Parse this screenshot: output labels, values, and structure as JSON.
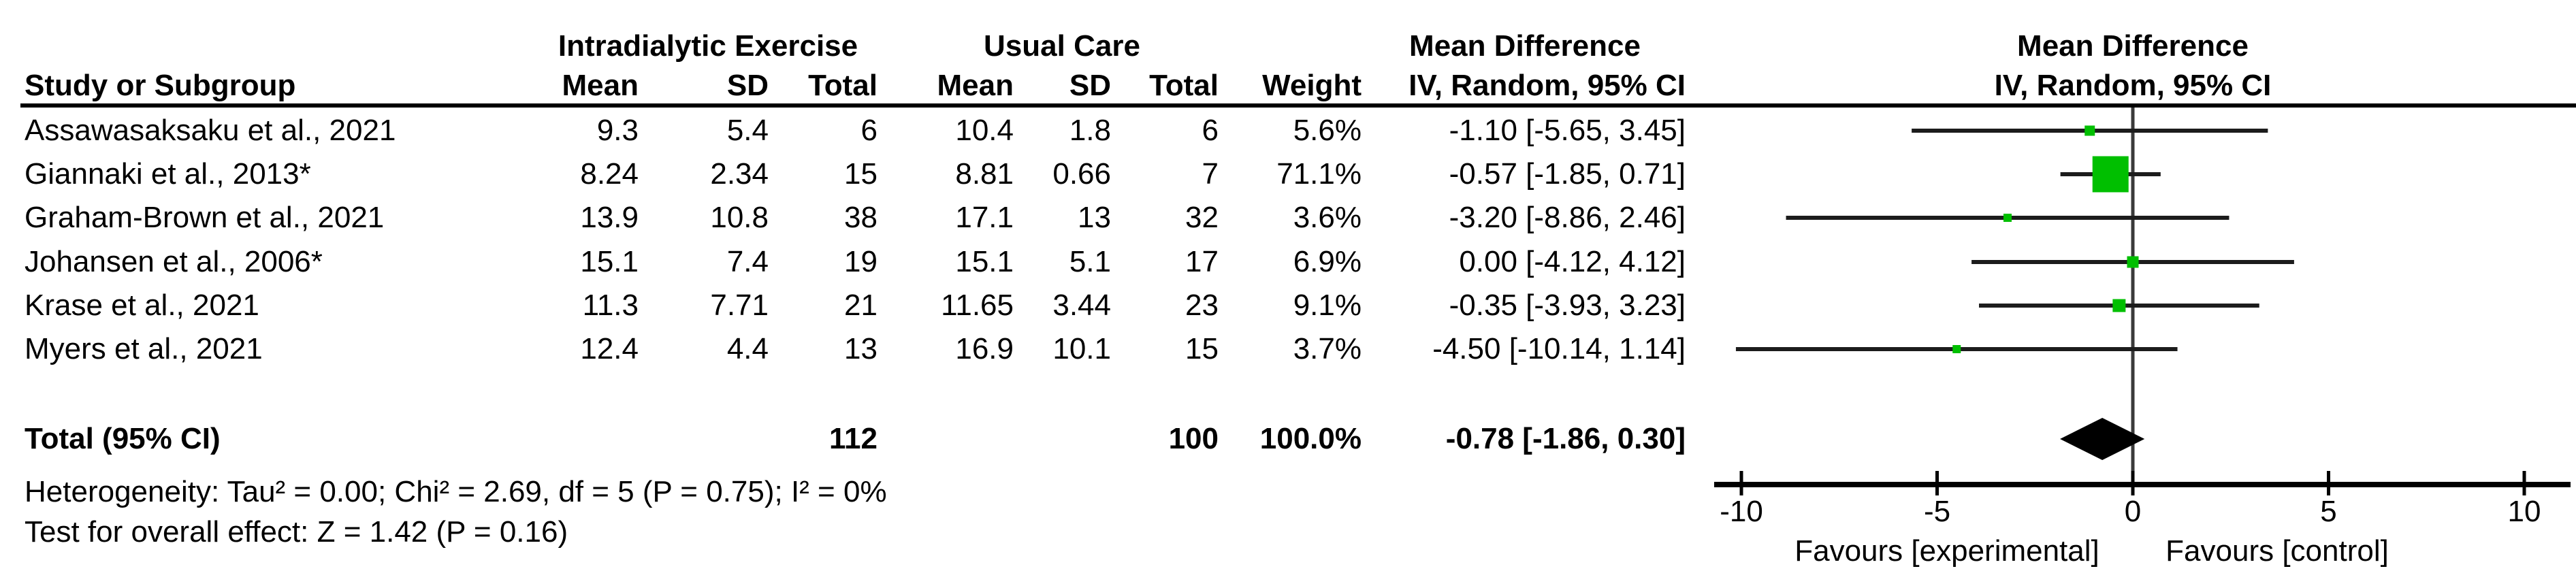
{
  "table": {
    "header": {
      "group_experimental": "Intradialytic Exercise",
      "group_control": "Usual Care",
      "effect_line1": "Mean Difference",
      "effect_line2": "IV, Random, 95% CI",
      "plot_line1": "Mean Difference",
      "plot_line2": "IV, Random, 95% CI",
      "study": "Study or Subgroup",
      "mean": "Mean",
      "sd": "SD",
      "total": "Total",
      "weight": "Weight"
    },
    "rows": [
      {
        "study": "Assawasaksaku et al., 2021",
        "mean1": "9.3",
        "sd1": "5.4",
        "total1": "6",
        "mean2": "10.4",
        "sd2": "1.8",
        "total2": "6",
        "weight": "5.6%",
        "ci_text": "-1.10 [-5.65, 3.45]"
      },
      {
        "study": "Giannaki et al., 2013*",
        "mean1": "8.24",
        "sd1": "2.34",
        "total1": "15",
        "mean2": "8.81",
        "sd2": "0.66",
        "total2": "7",
        "weight": "71.1%",
        "ci_text": "-0.57 [-1.85, 0.71]"
      },
      {
        "study": "Graham-Brown et al., 2021",
        "mean1": "13.9",
        "sd1": "10.8",
        "total1": "38",
        "mean2": "17.1",
        "sd2": "13",
        "total2": "32",
        "weight": "3.6%",
        "ci_text": "-3.20 [-8.86, 2.46]"
      },
      {
        "study": "Johansen et al., 2006*",
        "mean1": "15.1",
        "sd1": "7.4",
        "total1": "19",
        "mean2": "15.1",
        "sd2": "5.1",
        "total2": "17",
        "weight": "6.9%",
        "ci_text": "0.00 [-4.12, 4.12]"
      },
      {
        "study": "Krase et al., 2021",
        "mean1": "11.3",
        "sd1": "7.71",
        "total1": "21",
        "mean2": "11.65",
        "sd2": "3.44",
        "total2": "23",
        "weight": "9.1%",
        "ci_text": "-0.35 [-3.93, 3.23]"
      },
      {
        "study": "Myers et al., 2021",
        "mean1": "12.4",
        "sd1": "4.4",
        "total1": "13",
        "mean2": "16.9",
        "sd2": "10.1",
        "total2": "15",
        "weight": "3.7%",
        "ci_text": "-4.50 [-10.14, 1.14]"
      }
    ],
    "total_row": {
      "label": "Total (95% CI)",
      "total1": "112",
      "total2": "100",
      "weight": "100.0%",
      "ci_text": "-0.78 [-1.86, 0.30]"
    },
    "heterogeneity": "Heterogeneity: Tau² = 0.00; Chi² = 2.69, df = 5 (P = 0.75); I² = 0%",
    "overall_effect": "Test for overall effect: Z = 1.42 (P = 0.16)"
  },
  "plot": {
    "favours_left": "Favours [experimental]",
    "favours_right": "Favours [control]",
    "marker_color": "#00bf00",
    "ci_line_color": "#1c1c1c",
    "zero_line_color": "#3a3a3a",
    "axis_color": "#000000",
    "diamond_color": "#000000"
  },
  "chart_data": {
    "type": "forest_plot",
    "effect_measure": "Mean Difference",
    "model": "IV, Random, 95% CI",
    "group_labels": [
      "Intradialytic Exercise",
      "Usual Care"
    ],
    "studies": [
      {
        "name": "Assawasaksaku et al., 2021",
        "exp_mean": 9.3,
        "exp_sd": 5.4,
        "exp_total": 6,
        "ctrl_mean": 10.4,
        "ctrl_sd": 1.8,
        "ctrl_total": 6,
        "weight_pct": 5.6,
        "md": -1.1,
        "ci_low": -5.65,
        "ci_high": 3.45
      },
      {
        "name": "Giannaki et al., 2013*",
        "exp_mean": 8.24,
        "exp_sd": 2.34,
        "exp_total": 15,
        "ctrl_mean": 8.81,
        "ctrl_sd": 0.66,
        "ctrl_total": 7,
        "weight_pct": 71.1,
        "md": -0.57,
        "ci_low": -1.85,
        "ci_high": 0.71
      },
      {
        "name": "Graham-Brown et al., 2021",
        "exp_mean": 13.9,
        "exp_sd": 10.8,
        "exp_total": 38,
        "ctrl_mean": 17.1,
        "ctrl_sd": 13,
        "ctrl_total": 32,
        "weight_pct": 3.6,
        "md": -3.2,
        "ci_low": -8.86,
        "ci_high": 2.46
      },
      {
        "name": "Johansen et al., 2006*",
        "exp_mean": 15.1,
        "exp_sd": 7.4,
        "exp_total": 19,
        "ctrl_mean": 15.1,
        "ctrl_sd": 5.1,
        "ctrl_total": 17,
        "weight_pct": 6.9,
        "md": 0.0,
        "ci_low": -4.12,
        "ci_high": 4.12
      },
      {
        "name": "Krase et al., 2021",
        "exp_mean": 11.3,
        "exp_sd": 7.71,
        "exp_total": 21,
        "ctrl_mean": 11.65,
        "ctrl_sd": 3.44,
        "ctrl_total": 23,
        "weight_pct": 9.1,
        "md": -0.35,
        "ci_low": -3.93,
        "ci_high": 3.23
      },
      {
        "name": "Myers et al., 2021",
        "exp_mean": 12.4,
        "exp_sd": 4.4,
        "exp_total": 13,
        "ctrl_mean": 16.9,
        "ctrl_sd": 10.1,
        "ctrl_total": 15,
        "weight_pct": 3.7,
        "md": -4.5,
        "ci_low": -10.14,
        "ci_high": 1.14
      }
    ],
    "totals": {
      "exp_total": 112,
      "ctrl_total": 100,
      "weight_pct": 100.0,
      "md": -0.78,
      "ci_low": -1.86,
      "ci_high": 0.3
    },
    "heterogeneity": {
      "tau2": 0.0,
      "chi2": 2.69,
      "df": 5,
      "p": 0.75,
      "i2_pct": 0
    },
    "overall_effect": {
      "z": 1.42,
      "p": 0.16
    },
    "axis": {
      "min": -10,
      "max": 10,
      "ticks": [
        -10,
        -5,
        0,
        5,
        10
      ]
    },
    "xlabel_left": "Favours [experimental]",
    "xlabel_right": "Favours [control]"
  }
}
